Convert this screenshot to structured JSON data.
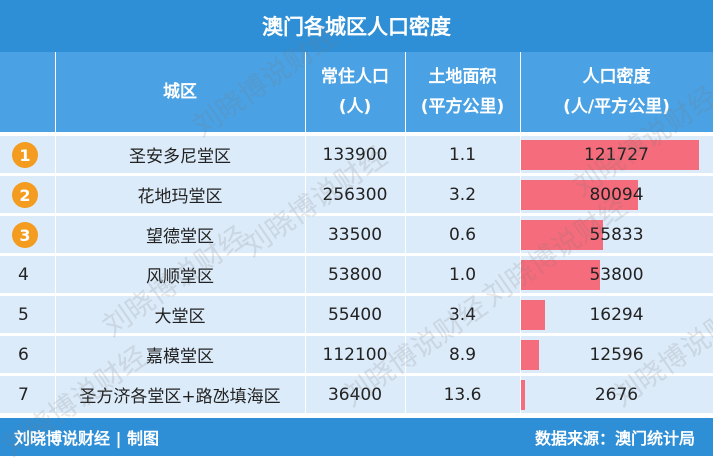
{
  "title": "澳门各城区人口密度",
  "headers": {
    "district": "城区",
    "population_l1": "常住人口",
    "population_l2": "(人)",
    "area_l1": "土地面积",
    "area_l2": "(平方公里)",
    "density_l1": "人口密度",
    "density_l2": "(人/平方公里)"
  },
  "footer": {
    "left": "刘晓博说财经 | 制图",
    "right": "数据来源：澳门统计局"
  },
  "watermark_text": "刘晓博说财经",
  "colors": {
    "header_blue": "#2f8fd6",
    "row_bg": "#dcebf9",
    "bar": "#f56c7c",
    "medal": "#f39c1f"
  },
  "chart_data": {
    "type": "table",
    "title": "澳门各城区人口密度",
    "columns": [
      "城区",
      "常住人口(人)",
      "土地面积(平方公里)",
      "人口密度(人/平方公里)"
    ],
    "rows": [
      {
        "rank": "1",
        "district": "圣安多尼堂区",
        "population": "133900",
        "area": "1.1",
        "density": "121727",
        "density_value": 121727
      },
      {
        "rank": "2",
        "district": "花地玛堂区",
        "population": "256300",
        "area": "3.2",
        "density": "80094",
        "density_value": 80094
      },
      {
        "rank": "3",
        "district": "望德堂区",
        "population": "33500",
        "area": "0.6",
        "density": "55833",
        "density_value": 55833
      },
      {
        "rank": "4",
        "district": "风顺堂区",
        "population": "53800",
        "area": "1.0",
        "density": "53800",
        "density_value": 53800
      },
      {
        "rank": "5",
        "district": "大堂区",
        "population": "55400",
        "area": "3.4",
        "density": "16294",
        "density_value": 16294
      },
      {
        "rank": "6",
        "district": "嘉模堂区",
        "population": "112100",
        "area": "8.9",
        "density": "12596",
        "density_value": 12596
      },
      {
        "rank": "7",
        "district": "圣方济各堂区+路氹填海区",
        "population": "36400",
        "area": "13.6",
        "density": "2676",
        "density_value": 2676
      }
    ]
  }
}
